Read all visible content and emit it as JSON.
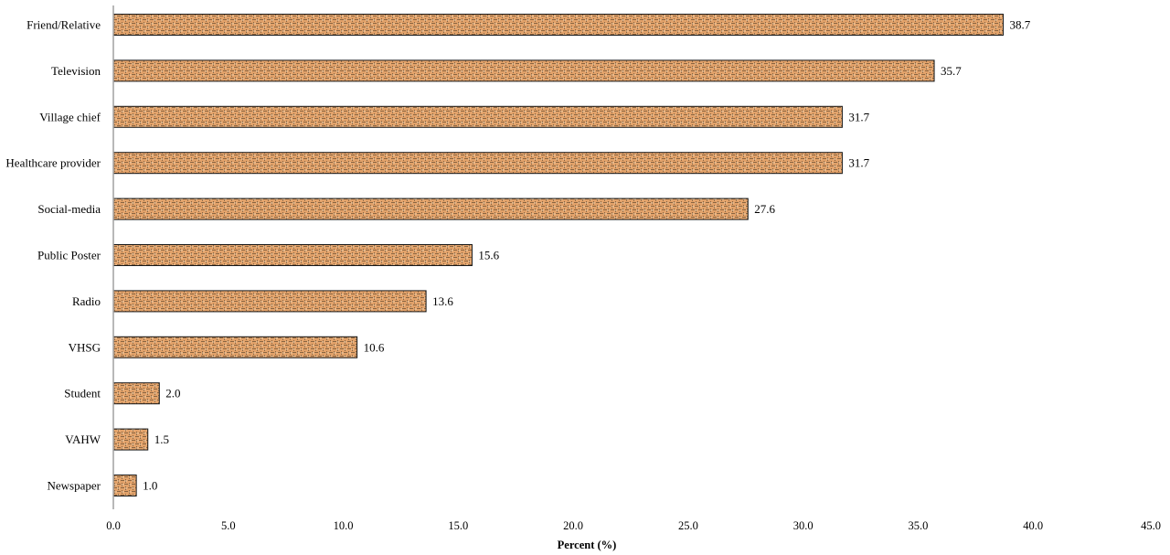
{
  "chart_data": {
    "type": "bar",
    "orientation": "horizontal",
    "categories": [
      "Friend/Relative",
      "Television",
      "Village chief",
      "Healthcare provider",
      "Social-media",
      "Public Poster",
      "Radio",
      "VHSG",
      "Student",
      "VAHW",
      "Newspaper"
    ],
    "values": [
      38.7,
      35.7,
      31.7,
      31.7,
      27.6,
      15.6,
      13.6,
      10.6,
      2.0,
      1.5,
      1.0
    ],
    "value_labels": [
      "38.7",
      "35.7",
      "31.7",
      "31.7",
      "27.6",
      "15.6",
      "13.6",
      "10.6",
      "2.0",
      "1.5",
      "1.0"
    ],
    "title": "",
    "xlabel": "Percent (%)",
    "ylabel": "",
    "xlim": [
      0,
      45
    ],
    "x_ticks": [
      "0.0",
      "5.0",
      "10.0",
      "15.0",
      "20.0",
      "25.0",
      "30.0",
      "35.0",
      "40.0",
      "45.0"
    ],
    "grid": false,
    "legend": "none",
    "colors": {
      "bar_fill": "#e2a26a",
      "bar_pattern": "#7a5a3a",
      "bar_border": "#1a1a1a",
      "axis": "#a0a0a0"
    }
  }
}
